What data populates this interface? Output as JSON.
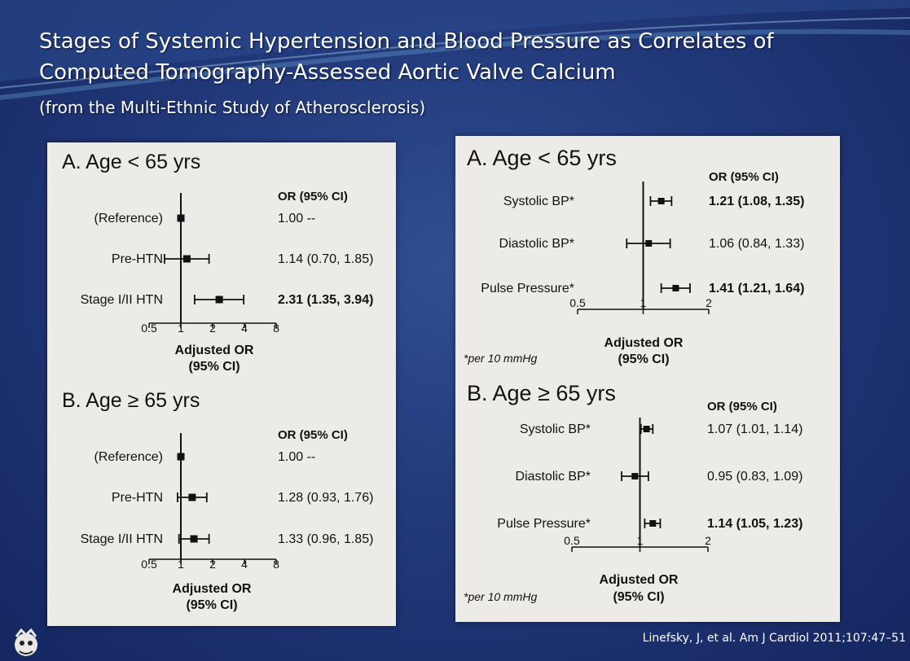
{
  "title": "Stages of Systemic Hypertension and Blood Pressure as Correlates of Computed Tomography-Assessed Aortic Valve Calcium",
  "subtitle": "(from the Multi-Ethnic Study of Atherosclerosis)",
  "citation": "Linefsky, J, et al. Am J Cardiol 2011;107:47–51",
  "colors": {
    "background": "#22397a",
    "panel": "#ecebe8",
    "text": "#111111"
  },
  "chart_data": [
    {
      "type": "forest",
      "title": "A. Age < 65 yrs",
      "xlabel": [
        "Adjusted OR",
        "(95% CI)"
      ],
      "x_scale": "log",
      "xlim": [
        0.5,
        8
      ],
      "ticks": [
        0.5,
        1,
        2,
        4,
        8
      ],
      "tick_labels": [
        "0.5",
        "1",
        "2",
        "4",
        "8"
      ],
      "or_header": "OR (95% CI)",
      "rows": [
        {
          "label": "(Reference)",
          "or": 1.0,
          "low": 1.0,
          "high": 1.0,
          "text": "1.00 --",
          "bold": false
        },
        {
          "label": "Pre-HTN",
          "or": 1.14,
          "low": 0.7,
          "high": 1.85,
          "text": "1.14 (0.70, 1.85)",
          "bold": false
        },
        {
          "label": "Stage I/II HTN",
          "or": 2.31,
          "low": 1.35,
          "high": 3.94,
          "text": "2.31 (1.35, 3.94)",
          "bold": true
        }
      ]
    },
    {
      "type": "forest",
      "title": "B. Age ≥ 65 yrs",
      "xlabel": [
        "Adjusted OR",
        "(95% CI)"
      ],
      "x_scale": "log",
      "xlim": [
        0.5,
        8
      ],
      "ticks": [
        0.5,
        1,
        2,
        4,
        8
      ],
      "tick_labels": [
        "0.5",
        "1",
        "2",
        "4",
        "8"
      ],
      "or_header": "OR (95% CI)",
      "rows": [
        {
          "label": "(Reference)",
          "or": 1.0,
          "low": 1.0,
          "high": 1.0,
          "text": "1.00 --",
          "bold": false
        },
        {
          "label": "Pre-HTN",
          "or": 1.28,
          "low": 0.93,
          "high": 1.76,
          "text": "1.28 (0.93, 1.76)",
          "bold": false
        },
        {
          "label": "Stage I/II HTN",
          "or": 1.33,
          "low": 0.96,
          "high": 1.85,
          "text": "1.33 (0.96, 1.85)",
          "bold": false
        }
      ]
    },
    {
      "type": "forest",
      "title": "A.  Age < 65 yrs",
      "xlabel": [
        "Adjusted OR",
        "(95% CI)"
      ],
      "x_scale": "log",
      "xlim": [
        0.5,
        2
      ],
      "ticks": [
        0.5,
        1,
        2
      ],
      "tick_labels": [
        "0.5",
        "1",
        "2"
      ],
      "or_header": "OR (95% CI)",
      "footnote": "*per 10 mmHg",
      "rows": [
        {
          "label": "Systolic BP*",
          "or": 1.21,
          "low": 1.08,
          "high": 1.35,
          "text": "1.21 (1.08, 1.35)",
          "bold": true
        },
        {
          "label": "Diastolic BP*",
          "or": 1.06,
          "low": 0.84,
          "high": 1.33,
          "text": "1.06 (0.84, 1.33)",
          "bold": false
        },
        {
          "label": "Pulse Pressure*",
          "or": 1.41,
          "low": 1.21,
          "high": 1.64,
          "text": "1.41 (1.21, 1.64)",
          "bold": true
        }
      ]
    },
    {
      "type": "forest",
      "title": "B. Age ≥ 65 yrs",
      "xlabel": [
        "Adjusted OR",
        "(95% CI)"
      ],
      "x_scale": "log",
      "xlim": [
        0.5,
        2
      ],
      "ticks": [
        0.5,
        1,
        2
      ],
      "tick_labels": [
        "0.5",
        "1",
        "2"
      ],
      "or_header": "OR (95% CI)",
      "footnote": "*per 10 mmHg",
      "rows": [
        {
          "label": "Systolic BP*",
          "or": 1.07,
          "low": 1.01,
          "high": 1.14,
          "text": "1.07 (1.01, 1.14)",
          "bold": false
        },
        {
          "label": "Diastolic BP*",
          "or": 0.95,
          "low": 0.83,
          "high": 1.09,
          "text": "0.95 (0.83, 1.09)",
          "bold": false
        },
        {
          "label": "Pulse Pressure*",
          "or": 1.14,
          "low": 1.05,
          "high": 1.23,
          "text": "1.14 (1.05, 1.23)",
          "bold": true
        }
      ]
    }
  ]
}
